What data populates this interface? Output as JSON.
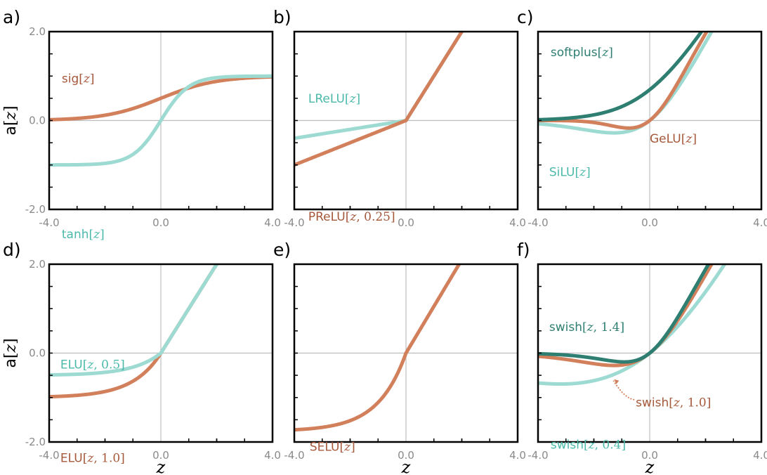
{
  "colors": {
    "sienna": "#d2805c",
    "sienna_text": "#a5583a",
    "aqua": "#9cdad2",
    "aqua_text": "#4bb9aa",
    "teal": "#2e7f72",
    "grid": "#bdbdbd",
    "tick_text": "#8a8a8a"
  },
  "chart_data": [
    {
      "id": "a",
      "panel_label": "a)",
      "type": "line",
      "xlim": [
        -4.0,
        4.0
      ],
      "ylim": [
        -2.0,
        2.0
      ],
      "x_ticks": [
        "-4.0",
        "0.0",
        "4.0"
      ],
      "y_ticks": [
        "2.0",
        "0.0",
        "-2.0"
      ],
      "ylabel": "a[z]",
      "xlabel": "",
      "series": [
        {
          "name": "sig[z]",
          "fn": "sigmoid",
          "color": "sienna"
        },
        {
          "name": "tanh[z]",
          "fn": "tanh",
          "color": "aqua"
        }
      ],
      "annotations": [
        {
          "text": "sig[z]",
          "x": -3.55,
          "y": 0.85,
          "color": "sienna_text"
        },
        {
          "text": "tanh[z]",
          "x": -3.55,
          "y": -2.65,
          "color": "aqua_text"
        }
      ]
    },
    {
      "id": "b",
      "panel_label": "b)",
      "type": "line",
      "xlim": [
        -4.0,
        4.0
      ],
      "ylim": [
        -2.0,
        2.0
      ],
      "x_ticks": [
        "-4.0",
        "0.0",
        "4.0"
      ],
      "y_ticks": [],
      "ylabel": "",
      "xlabel": "",
      "series": [
        {
          "name": "LReLU[z]",
          "fn": "lrelu",
          "color": "aqua"
        },
        {
          "name": "PReLU[z,0.25]",
          "fn": "prelu",
          "param": 0.25,
          "color": "sienna"
        }
      ],
      "annotations": [
        {
          "text": "LReLU[z]",
          "x": -3.5,
          "y": 0.4,
          "color": "aqua_text"
        },
        {
          "text": "PReLU[z,0.25]",
          "x": -3.5,
          "y": -2.25,
          "color": "sienna_text"
        }
      ]
    },
    {
      "id": "c",
      "panel_label": "c)",
      "type": "line",
      "xlim": [
        -4.0,
        4.0
      ],
      "ylim": [
        -2.0,
        2.0
      ],
      "x_ticks": [
        "-4.0",
        "0.0",
        "4.0"
      ],
      "y_ticks": [],
      "ylabel": "",
      "xlabel": "",
      "series": [
        {
          "name": "SiLU[z]",
          "fn": "silu",
          "color": "aqua"
        },
        {
          "name": "GeLU[z]",
          "fn": "gelu",
          "color": "sienna"
        },
        {
          "name": "softplus[z]",
          "fn": "softplus",
          "color": "teal"
        }
      ],
      "annotations": [
        {
          "text": "softplus[z]",
          "x": -3.55,
          "y": 1.45,
          "color": "teal"
        },
        {
          "text": "GeLU[z]",
          "x": 0.0,
          "y": -0.5,
          "color": "sienna_text"
        },
        {
          "text": "SiLU[z]",
          "x": -3.6,
          "y": -1.25,
          "color": "aqua_text"
        }
      ]
    },
    {
      "id": "d",
      "panel_label": "d)",
      "type": "line",
      "xlim": [
        -4.0,
        4.0
      ],
      "ylim": [
        -2.0,
        2.0
      ],
      "x_ticks": [
        "-4.0",
        "0.0",
        "4.0"
      ],
      "y_ticks": [
        "2.0",
        "0.0",
        "-2.0"
      ],
      "ylabel": "a[z]",
      "xlabel": "z",
      "series": [
        {
          "name": "ELU[z,1.0]",
          "fn": "elu",
          "param": 1.0,
          "color": "sienna"
        },
        {
          "name": "ELU[z,0.5]",
          "fn": "elu",
          "param": 0.5,
          "color": "aqua"
        }
      ],
      "annotations": [
        {
          "text": "ELU[z,0.5]",
          "x": -3.6,
          "y": -0.35,
          "color": "aqua_text"
        },
        {
          "text": "ELU[z,1.0]",
          "x": -3.6,
          "y": -2.45,
          "color": "sienna_text"
        }
      ]
    },
    {
      "id": "e",
      "panel_label": "e)",
      "type": "line",
      "xlim": [
        -4.0,
        4.0
      ],
      "ylim": [
        -2.0,
        2.0
      ],
      "x_ticks": [
        "-4.0",
        "0.0",
        "4.0"
      ],
      "y_ticks": [],
      "ylabel": "",
      "xlabel": "z",
      "series": [
        {
          "name": "SELU[z]",
          "fn": "selu",
          "color": "sienna"
        }
      ],
      "annotations": [
        {
          "text": "SELU[z]",
          "x": -3.45,
          "y": -2.2,
          "color": "sienna_text"
        }
      ]
    },
    {
      "id": "f",
      "panel_label": "f)",
      "type": "line",
      "xlim": [
        -4.0,
        4.0
      ],
      "ylim": [
        -2.0,
        2.0
      ],
      "x_ticks": [
        "-4.0",
        "0.0",
        "4.0"
      ],
      "y_ticks": [],
      "ylabel": "",
      "xlabel": "z",
      "series": [
        {
          "name": "swish[z,0.4]",
          "fn": "swish",
          "param": 0.4,
          "color": "aqua"
        },
        {
          "name": "swish[z,1.0]",
          "fn": "swish",
          "param": 1.0,
          "color": "sienna"
        },
        {
          "name": "swish[z,1.4]",
          "fn": "swish",
          "param": 1.4,
          "color": "teal"
        }
      ],
      "annotations": [
        {
          "text": "swish[z,1.4]",
          "x": -3.6,
          "y": 0.5,
          "color": "teal"
        },
        {
          "text": "swish[z,1.0]",
          "x": -0.5,
          "y": -1.2,
          "color": "sienna_text"
        },
        {
          "text": "swish[z,0.4]",
          "x": -3.55,
          "y": -2.15,
          "color": "aqua_text"
        }
      ]
    }
  ]
}
